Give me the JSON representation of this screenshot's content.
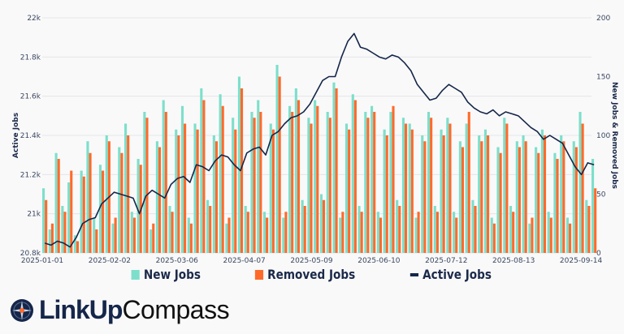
{
  "chart_data": {
    "type": "bar+line",
    "start_date": "2025-01-01",
    "step_days": 3,
    "x_tick_labels": [
      "2025-01-01",
      "2025-02-02",
      "2025-03-06",
      "2025-04-07",
      "2025-05-09",
      "2025-06-10",
      "2025-07-12",
      "2025-08-13",
      "2025-09-14"
    ],
    "x_tick_days": [
      0,
      32,
      64,
      96,
      128,
      160,
      192,
      224,
      256
    ],
    "left_axis": {
      "title": "Active Jobs",
      "ylim": [
        20.8,
        22.0
      ],
      "ticks": [
        20.8,
        21.0,
        21.2,
        21.4,
        21.6,
        21.8,
        22.0
      ],
      "tick_labels": [
        "20.8k",
        "21k",
        "21.2k",
        "21.4k",
        "21.6k",
        "21.8k",
        "22k"
      ]
    },
    "right_axis": {
      "title": "New Jobs & Removed Jobs",
      "ylim": [
        0,
        200
      ],
      "ticks": [
        0,
        50,
        100,
        150,
        200
      ],
      "tick_labels": [
        "0",
        "50",
        "100",
        "150",
        "200"
      ]
    },
    "series": [
      {
        "name": "New Jobs",
        "type": "bar",
        "axis": "right",
        "color": "#7ddfcb",
        "values": [
          55,
          20,
          85,
          40,
          60,
          15,
          70,
          95,
          30,
          75,
          100,
          25,
          90,
          110,
          35,
          80,
          120,
          20,
          95,
          130,
          40,
          105,
          125,
          30,
          110,
          140,
          45,
          100,
          135,
          25,
          115,
          150,
          40,
          120,
          130,
          35,
          110,
          160,
          30,
          125,
          140,
          45,
          115,
          130,
          50,
          120,
          145,
          30,
          110,
          135,
          40,
          120,
          125,
          35,
          105,
          120,
          45,
          115,
          110,
          30,
          100,
          120,
          40,
          105,
          115,
          35,
          95,
          110,
          45,
          100,
          105,
          30,
          90,
          115,
          40,
          95,
          100,
          25,
          90,
          105,
          35,
          85,
          100,
          30,
          95,
          120,
          45,
          80
        ]
      },
      {
        "name": "Removed Jobs",
        "type": "bar",
        "axis": "right",
        "color": "#ff6a2b",
        "values": [
          45,
          25,
          80,
          35,
          70,
          10,
          65,
          85,
          20,
          70,
          95,
          30,
          85,
          100,
          30,
          75,
          115,
          25,
          90,
          120,
          35,
          100,
          110,
          25,
          105,
          130,
          40,
          95,
          125,
          30,
          105,
          140,
          35,
          115,
          120,
          30,
          105,
          150,
          35,
          120,
          130,
          40,
          110,
          125,
          45,
          115,
          140,
          35,
          105,
          130,
          35,
          115,
          120,
          30,
          100,
          125,
          40,
          110,
          105,
          35,
          95,
          115,
          35,
          100,
          110,
          30,
          90,
          120,
          40,
          95,
          100,
          25,
          85,
          110,
          35,
          90,
          95,
          30,
          85,
          100,
          30,
          80,
          95,
          25,
          90,
          110,
          40,
          55
        ]
      },
      {
        "name": "Active Jobs",
        "type": "line",
        "axis": "left",
        "color": "#15264a",
        "values": [
          20.85,
          20.84,
          20.86,
          20.85,
          20.83,
          20.88,
          20.95,
          20.97,
          20.98,
          21.05,
          21.08,
          21.11,
          21.1,
          21.09,
          21.08,
          21.0,
          21.09,
          21.12,
          21.1,
          21.08,
          21.15,
          21.18,
          21.19,
          21.16,
          21.25,
          21.24,
          21.22,
          21.27,
          21.3,
          21.29,
          21.25,
          21.22,
          21.31,
          21.33,
          21.34,
          21.3,
          21.4,
          21.42,
          21.46,
          21.49,
          21.5,
          21.52,
          21.56,
          21.62,
          21.68,
          21.7,
          21.7,
          21.8,
          21.88,
          21.92,
          21.85,
          21.84,
          21.82,
          21.8,
          21.79,
          21.81,
          21.8,
          21.77,
          21.73,
          21.66,
          21.62,
          21.58,
          21.59,
          21.63,
          21.66,
          21.64,
          21.62,
          21.57,
          21.54,
          21.52,
          21.51,
          21.53,
          21.5,
          21.52,
          21.51,
          21.5,
          21.47,
          21.44,
          21.42,
          21.38,
          21.4,
          21.38,
          21.36,
          21.3,
          21.24,
          21.2,
          21.26,
          21.25
        ]
      }
    ],
    "grid": true,
    "legend_position": "bottom-center"
  },
  "legend": {
    "new": "New Jobs",
    "removed": "Removed Jobs",
    "active": "Active Jobs"
  },
  "logo": {
    "bold": "LinkUp",
    "light": "Compass"
  }
}
